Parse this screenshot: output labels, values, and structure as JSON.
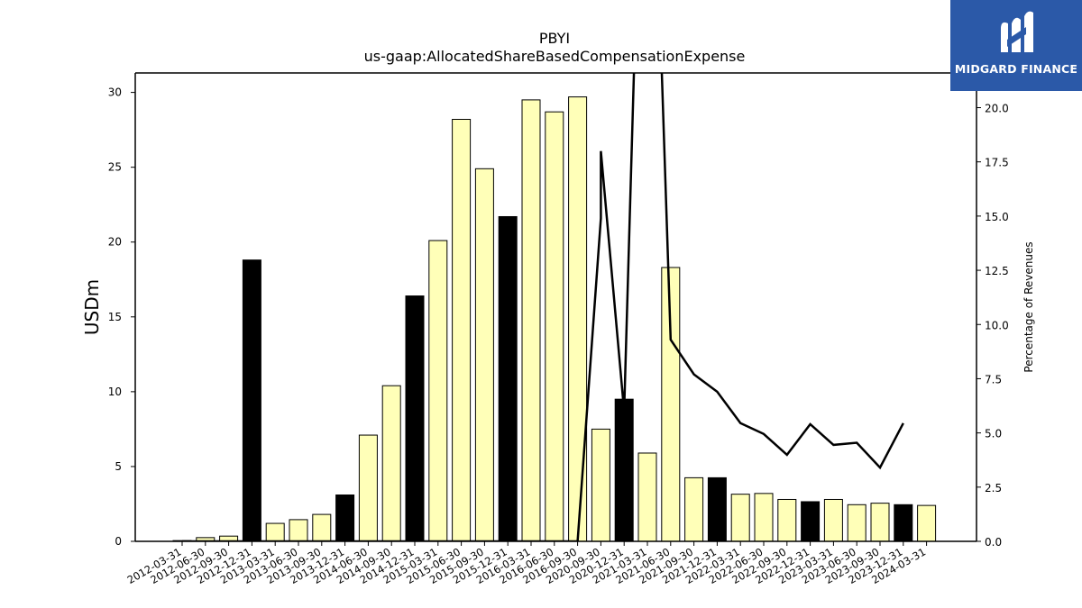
{
  "chart_data": {
    "type": "bar",
    "title": "PBYI",
    "subtitle": "us-gaap:AllocatedShareBasedCompensationExpense",
    "ylabel": "USDm",
    "y2label": "Percentage of Revenues",
    "ylim": [
      0,
      31.3
    ],
    "y2lim": [
      0,
      21.6
    ],
    "yticks": [
      0,
      5,
      10,
      15,
      20,
      25,
      30
    ],
    "y2ticks": [
      "0.0",
      "2.5",
      "5.0",
      "7.5",
      "10.0",
      "12.5",
      "15.0",
      "17.5",
      "20.0"
    ],
    "grid": false,
    "legend": "none",
    "categories": [
      "2012-03-31",
      "2012-06-30",
      "2012-09-30",
      "2012-12-31",
      "2013-03-31",
      "2013-06-30",
      "2013-09-30",
      "2013-12-31",
      "2014-06-30",
      "2014-09-30",
      "2014-12-31",
      "2015-03-31",
      "2015-06-30",
      "2015-09-30",
      "2015-12-31",
      "2016-03-31",
      "2016-06-30",
      "2016-09-30",
      "2020-09-30",
      "2020-12-31",
      "2021-03-31",
      "2021-06-30",
      "2021-09-30",
      "2021-12-31",
      "2022-03-31",
      "2022-06-30",
      "2022-09-30",
      "2022-12-31",
      "2023-03-31",
      "2023-06-30",
      "2023-09-30",
      "2023-12-31",
      "2024-03-31"
    ],
    "bar_values": [
      0.05,
      0.25,
      0.35,
      18.8,
      1.2,
      1.45,
      1.8,
      3.1,
      7.1,
      10.4,
      16.4,
      20.1,
      28.2,
      24.9,
      21.7,
      29.5,
      28.7,
      29.7,
      7.5,
      9.5,
      5.9,
      18.3,
      4.25,
      4.25,
      3.15,
      3.2,
      2.8,
      2.65,
      2.8,
      2.45,
      2.55,
      2.45,
      2.4
    ],
    "bar_colors": [
      "#ffffb8",
      "#ffffb8",
      "#ffffb8",
      "#000000",
      "#ffffb8",
      "#ffffb8",
      "#ffffb8",
      "#000000",
      "#ffffb8",
      "#ffffb8",
      "#000000",
      "#ffffb8",
      "#ffffb8",
      "#ffffb8",
      "#000000",
      "#ffffb8",
      "#ffffb8",
      "#ffffb8",
      "#ffffb8",
      "#000000",
      "#ffffb8",
      "#ffffb8",
      "#ffffb8",
      "#000000",
      "#ffffb8",
      "#ffffb8",
      "#ffffb8",
      "#000000",
      "#ffffb8",
      "#ffffb8",
      "#ffffb8",
      "#000000",
      "#ffffb8"
    ],
    "line_series": {
      "name": "",
      "values": [
        0,
        0,
        0,
        0,
        0,
        0,
        0,
        0,
        0,
        0,
        0,
        0,
        0,
        0,
        0,
        0,
        0,
        0,
        14.9,
        18.0,
        6.0,
        32.0,
        32.0,
        9.3,
        7.7,
        6.9,
        5.45,
        4.95,
        3.99,
        5.4,
        4.45,
        4.55,
        3.4,
        5.45
      ],
      "line_x_index": [
        0,
        1,
        2,
        3,
        4,
        5,
        6,
        7,
        8,
        9,
        10,
        11,
        12,
        13,
        14,
        15,
        16,
        17,
        17.999,
        18,
        19,
        19.7,
        20.3,
        21,
        22,
        23,
        24,
        25,
        26,
        27,
        28,
        29,
        30,
        31
      ]
    }
  },
  "logo": {
    "name": "MIDGARD FINANCE",
    "background": "#2b59a8"
  }
}
